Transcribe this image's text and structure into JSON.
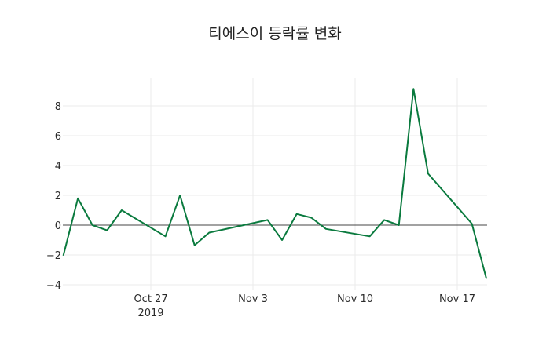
{
  "chart_data": {
    "type": "line",
    "title": "티에스이 등락률 변화",
    "xlabel": "",
    "ylabel": "",
    "ylim": [
      -4.3,
      9.9
    ],
    "grid": true,
    "legend": null,
    "line_color": "#0a7a3e",
    "x_ticks": [
      {
        "label": "Oct 27",
        "sublabel": "2019",
        "date": "2019-10-27"
      },
      {
        "label": "Nov 3",
        "sublabel": "",
        "date": "2019-11-03"
      },
      {
        "label": "Nov 10",
        "sublabel": "",
        "date": "2019-11-10"
      },
      {
        "label": "Nov 17",
        "sublabel": "",
        "date": "2019-11-17"
      }
    ],
    "y_ticks": [
      -4,
      -2,
      0,
      2,
      4,
      6,
      8
    ],
    "x": [
      "2019-10-21",
      "2019-10-22",
      "2019-10-23",
      "2019-10-24",
      "2019-10-25",
      "2019-10-28",
      "2019-10-29",
      "2019-10-30",
      "2019-10-31",
      "2019-11-04",
      "2019-11-05",
      "2019-11-06",
      "2019-11-07",
      "2019-11-08",
      "2019-11-11",
      "2019-11-12",
      "2019-11-13",
      "2019-11-14",
      "2019-11-15",
      "2019-11-18",
      "2019-11-19"
    ],
    "series": [
      {
        "name": "등락률",
        "values": [
          -2.05,
          1.8,
          0.0,
          -0.35,
          1.0,
          -0.75,
          2.0,
          -1.35,
          -0.5,
          0.35,
          -1.0,
          0.75,
          0.5,
          -0.25,
          -0.75,
          0.35,
          0.0,
          9.15,
          3.45,
          0.1,
          -3.6
        ]
      }
    ]
  }
}
